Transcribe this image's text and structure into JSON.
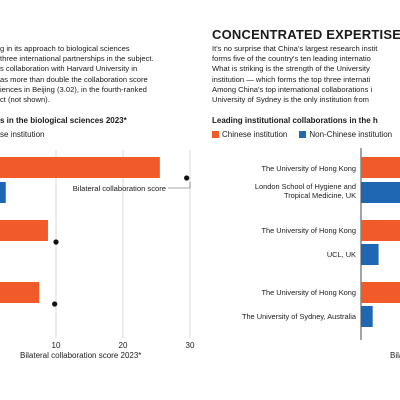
{
  "left_panel": {
    "intro": [
      "g in its approach to biological sciences",
      "three international partnerships in the subject.",
      "s collaboration with Harvard University in",
      "as more than double the collaboration score",
      "iences in Beijing (3.02), in the fourth-ranked",
      "ct (not shown)."
    ],
    "subtitle": "s in the biological sciences 2023*",
    "legend_partial": "se institution",
    "annotation": "Bilateral collaboration score",
    "xlabel": "Bilateral collaboration score 2023*"
  },
  "right_panel": {
    "heading": "CONCENTRATED EXPERTISE",
    "intro": [
      "It's no surprise that China's largest research instit",
      "forms five of the country's ten leading internatio",
      "What is striking is the strength of the University",
      "institution — which forms the top three internati",
      "Among China's top international collaborations i",
      "University of Sydney is the only institution from"
    ],
    "subtitle": "Leading institutional collaborations in the h",
    "legend": [
      {
        "label": "Chinese institution",
        "color": "#f15a29"
      },
      {
        "label": "Non-Chinese institution",
        "color": "#1f66b3"
      }
    ],
    "labels": [
      [
        "The University of Hong Kong"
      ],
      [
        "London School of Hygiene and",
        "Tropical Medicine, UK"
      ],
      [
        "The University of Hong Kong"
      ],
      [
        "UCL, UK"
      ],
      [
        "The University of Hong Kong"
      ],
      [
        "The University of Sydney, Australia"
      ]
    ],
    "xlabel_partial": "Bilat"
  },
  "chart_data": [
    {
      "type": "bar",
      "orientation": "horizontal",
      "title": "s in the biological sciences 2023*",
      "xlabel": "Bilateral collaboration score 2023*",
      "xlim": [
        0,
        30
      ],
      "ticks": [
        "10",
        "20",
        "30"
      ],
      "bars": [
        {
          "value": 25.5,
          "color": "#f15a29"
        },
        {
          "value": 2.5,
          "color": "#1f66b3"
        },
        {
          "value": 8.8,
          "color": "#f15a29"
        },
        {
          "value": 7.5,
          "color": "#f15a29"
        },
        {
          "value": 0.6,
          "color": "#1f66b3"
        }
      ],
      "dots": [
        {
          "value": 29.5,
          "row": 1
        },
        {
          "value": 10.0,
          "row": 2
        },
        {
          "value": 9.8,
          "row": 3
        }
      ],
      "annotation": "Bilateral collaboration score"
    },
    {
      "type": "bar",
      "orientation": "horizontal",
      "title": "Leading institutional collaborations in the h",
      "series": [
        {
          "name": "Chinese institution",
          "color": "#f15a29"
        },
        {
          "name": "Non-Chinese institution",
          "color": "#1f66b3"
        }
      ],
      "bars": [
        {
          "label": "The University of Hong Kong",
          "value": 1,
          "color": "#f15a29"
        },
        {
          "label": "London School of Hygiene and Tropical Medicine, UK",
          "value": 1,
          "color": "#1f66b3"
        },
        {
          "label": "The University of Hong Kong",
          "value": 1,
          "color": "#f15a29"
        },
        {
          "label": "UCL, UK",
          "value": 0.45,
          "color": "#1f66b3"
        },
        {
          "label": "The University of Hong Kong",
          "value": 1,
          "color": "#f15a29"
        },
        {
          "label": "The University of Sydney, Australia",
          "value": 0.3,
          "color": "#1f66b3"
        }
      ],
      "xlabel": "Bilat"
    }
  ]
}
